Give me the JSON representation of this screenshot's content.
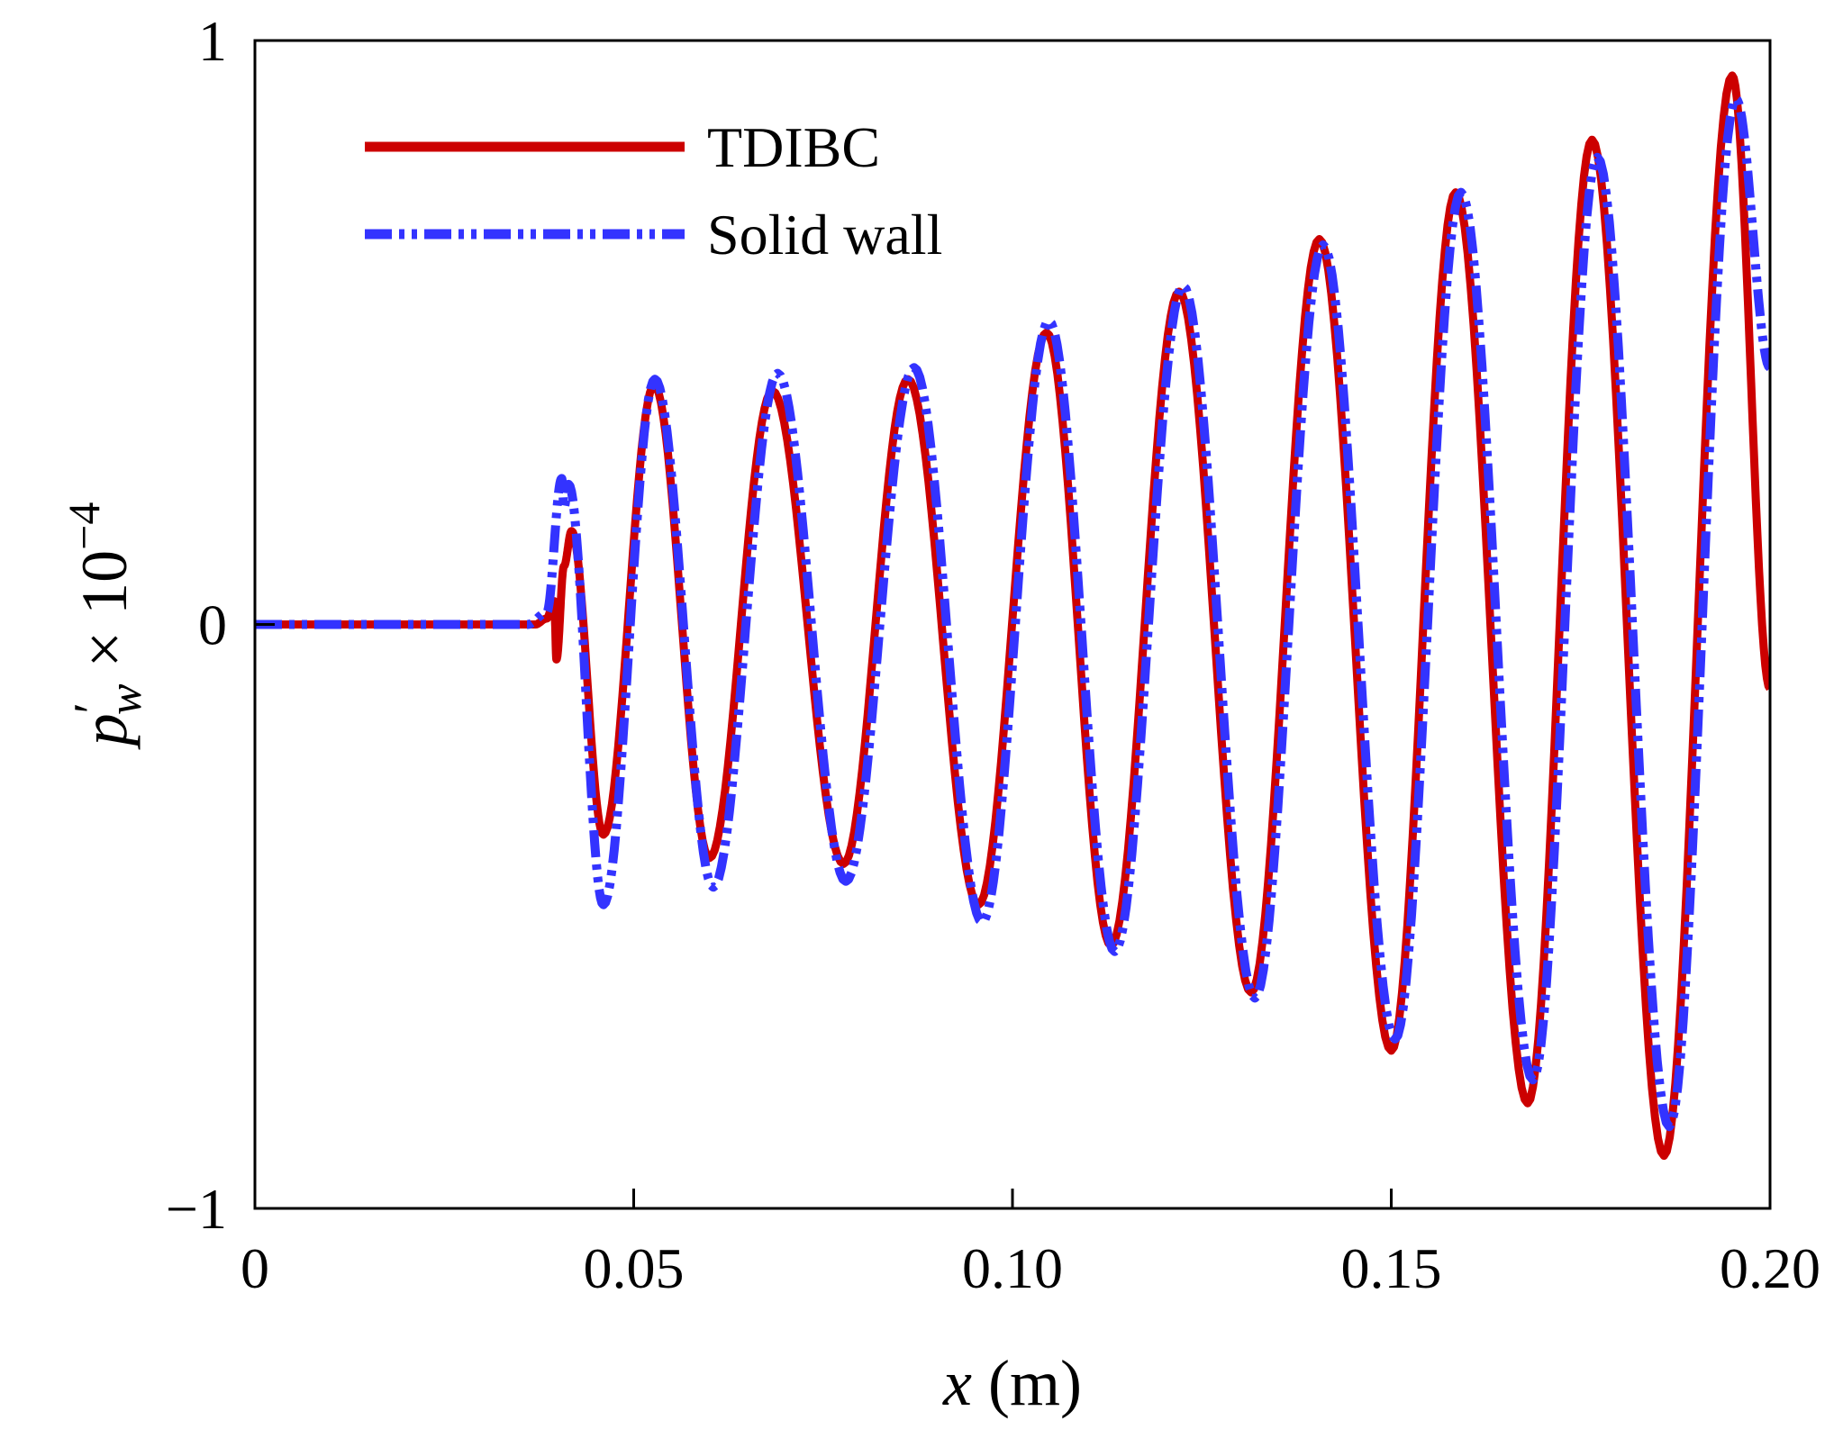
{
  "chart_data": {
    "type": "line",
    "xlabel": {
      "var": "x",
      "unit": " (m)"
    },
    "ylabel": {
      "base": "p",
      "prime": "′",
      "sub": "w",
      "times": " × 10",
      "exp": "−4"
    },
    "xlim": [
      0,
      0.2
    ],
    "ylim": [
      -1,
      1
    ],
    "xticks": [
      0,
      0.05,
      0.1,
      0.15,
      0.2
    ],
    "xtick_labels": [
      "0",
      "0.05",
      "0.10",
      "0.15",
      "0.20"
    ],
    "yticks": [
      -1,
      0,
      1
    ],
    "ytick_labels": [
      "−1",
      "0",
      "1"
    ],
    "grid": false,
    "legend_position": "top-left",
    "series": [
      {
        "name": "TDIBC",
        "color": "#cc0000",
        "style": "solid",
        "x": [
          0,
          0.037,
          0.0385,
          0.0395,
          0.0398,
          0.0408,
          0.0418,
          0.046,
          0.0527,
          0.06,
          0.0683,
          0.0777,
          0.0862,
          0.0955,
          0.1045,
          0.113,
          0.122,
          0.1315,
          0.1405,
          0.15,
          0.1585,
          0.168,
          0.1765,
          0.186,
          0.195,
          0.2
        ],
        "y": [
          0,
          0,
          0.01,
          0.04,
          -0.06,
          0.1,
          0.16,
          -0.36,
          0.41,
          -0.4,
          0.4,
          -0.41,
          0.42,
          -0.48,
          0.5,
          -0.55,
          0.57,
          -0.63,
          0.66,
          -0.73,
          0.74,
          -0.82,
          0.83,
          -0.91,
          0.94,
          -0.11
        ]
      },
      {
        "name": "Solid wall",
        "color": "#3333ff",
        "style": "dash-dot-dot",
        "x": [
          0,
          0.036,
          0.0385,
          0.0405,
          0.0408,
          0.0414,
          0.046,
          0.0528,
          0.0605,
          0.069,
          0.078,
          0.087,
          0.096,
          0.1048,
          0.1135,
          0.1225,
          0.132,
          0.141,
          0.1505,
          0.1592,
          0.1687,
          0.1772,
          0.1867,
          0.1955,
          0.2
        ],
        "y": [
          0,
          0,
          0.02,
          0.25,
          0.2,
          0.24,
          -0.48,
          0.42,
          -0.45,
          0.43,
          -0.44,
          0.44,
          -0.51,
          0.52,
          -0.56,
          0.58,
          -0.64,
          0.65,
          -0.71,
          0.74,
          -0.78,
          0.8,
          -0.86,
          0.9,
          0.44
        ]
      }
    ]
  }
}
